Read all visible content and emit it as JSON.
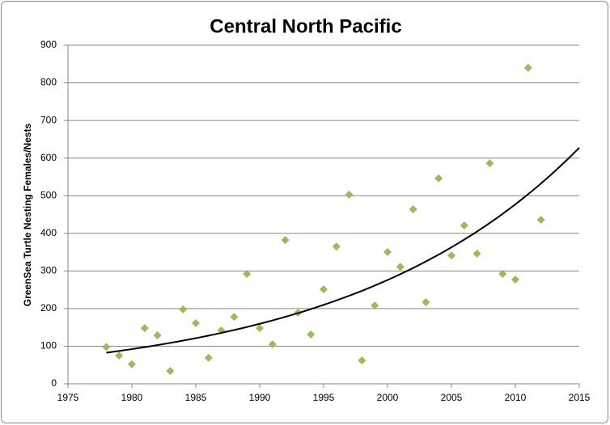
{
  "chart_data": {
    "type": "scatter",
    "title": "Central North Pacific",
    "y_label": "GreenSea Turtle Nesting Females/Nests",
    "x": [
      1978,
      1979,
      1980,
      1981,
      1982,
      1983,
      1984,
      1985,
      1986,
      1987,
      1988,
      1989,
      1990,
      1991,
      1992,
      1993,
      1994,
      1995,
      1996,
      1997,
      1998,
      1999,
      2000,
      2001,
      2002,
      2003,
      2004,
      2005,
      2006,
      2007,
      2008,
      2009,
      2010,
      2011,
      2012
    ],
    "values": [
      98,
      75,
      52,
      148,
      129,
      34,
      198,
      161,
      69,
      142,
      178,
      292,
      148,
      105,
      382,
      189,
      131,
      251,
      365,
      503,
      62,
      208,
      350,
      311,
      464,
      217,
      546,
      341,
      421,
      346,
      586,
      292,
      277,
      840,
      436
    ],
    "color": "#9bbb59",
    "trendline": {
      "type": "exponential",
      "color": "#000000"
    },
    "xlim": [
      1975,
      2015
    ],
    "xticks": [
      1975,
      1980,
      1985,
      1990,
      1995,
      2000,
      2005,
      2010,
      2015
    ],
    "ylim": [
      0,
      900
    ],
    "yticks": [
      0,
      100,
      200,
      300,
      400,
      500,
      600,
      700,
      800,
      900
    ],
    "grid": true
  }
}
